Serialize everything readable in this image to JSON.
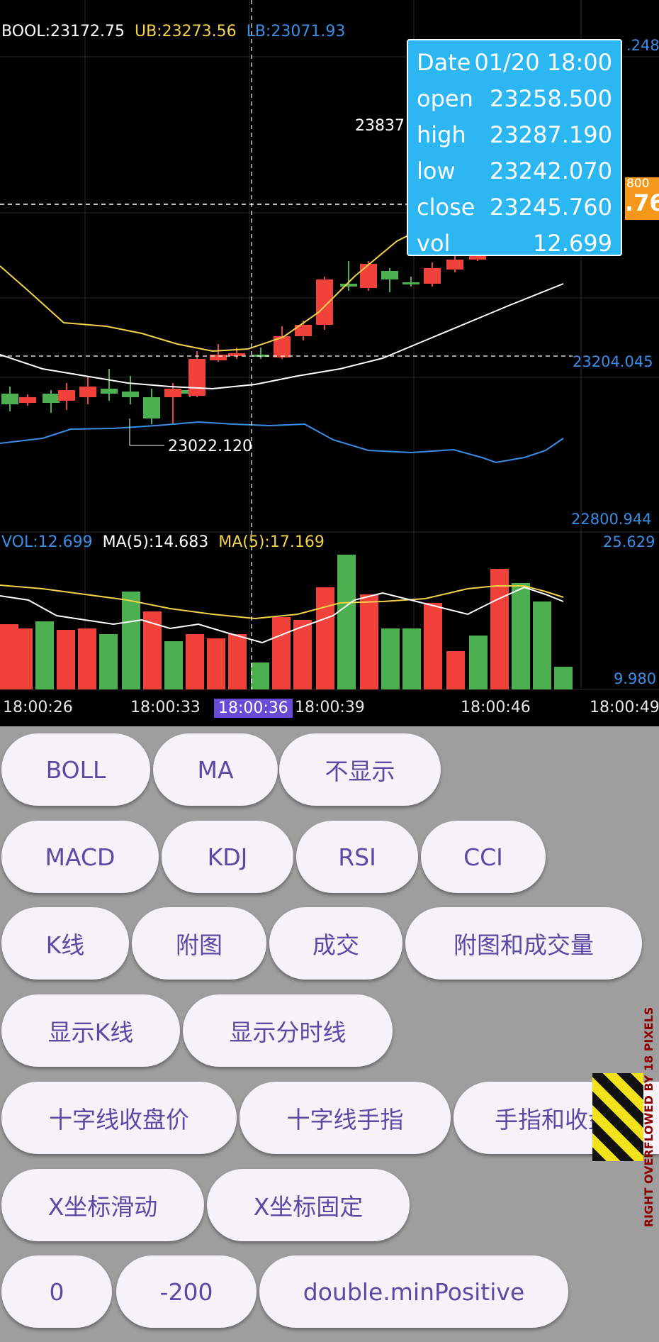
{
  "main_legend": {
    "boll": "BOOL:23172.75",
    "ub": "UB:23273.56",
    "lb": "LB:23071.93",
    "colors": {
      "boll": "#ffffff",
      "ub": "#f2d24a",
      "lb": "#3a8ee6"
    }
  },
  "main_axis": {
    "top": ".248",
    "mid": "23204.045",
    "bottom": "22800.944"
  },
  "annotations": {
    "high_value": "23837",
    "low_value": "23022.120"
  },
  "price_tag": {
    "top": "800",
    "big": ".76"
  },
  "tooltip": {
    "rows": [
      {
        "label": "Date",
        "value": "01/20 18:00"
      },
      {
        "label": "open",
        "value": "23258.500"
      },
      {
        "label": "high",
        "value": "23287.190"
      },
      {
        "label": "low",
        "value": "23242.070"
      },
      {
        "label": "close",
        "value": "23245.760"
      },
      {
        "label": "vol",
        "value": "12.699"
      }
    ]
  },
  "vol_legend": {
    "vol": "VOL:12.699",
    "ma5_a": "MA(5):14.683",
    "ma5_b": "MA(5):17.169"
  },
  "vol_axis": {
    "top": "25.629",
    "bottom": "9.980"
  },
  "x_axis": {
    "labels": [
      "18:00:26",
      "18:00:33",
      "18:00:36",
      "18:00:39",
      "18:00:46",
      "18:00:49"
    ],
    "selected_index": 2
  },
  "colors": {
    "up": "#f0413a",
    "down": "#4caf50",
    "accent": "#5a4aa6",
    "button_bg": "#f5f2f8"
  },
  "buttons": {
    "row1": [
      "BOLL",
      "MA",
      "不显示"
    ],
    "row2": [
      "MACD",
      "KDJ",
      "RSI",
      "CCI"
    ],
    "row3": [
      "K线",
      "附图",
      "成交",
      "附图和成交量"
    ],
    "row4": [
      "显示K线",
      "显示分时线"
    ],
    "row5": [
      "十字线收盘价",
      "十字线手指",
      "手指和收盘价"
    ],
    "row6": [
      "X坐标滑动",
      "X坐标固定"
    ],
    "row7": [
      "0",
      "-200",
      "double.minPositive"
    ]
  },
  "overflow_warning": "RIGHT OVERFLOWED BY 18 PIXELS"
}
